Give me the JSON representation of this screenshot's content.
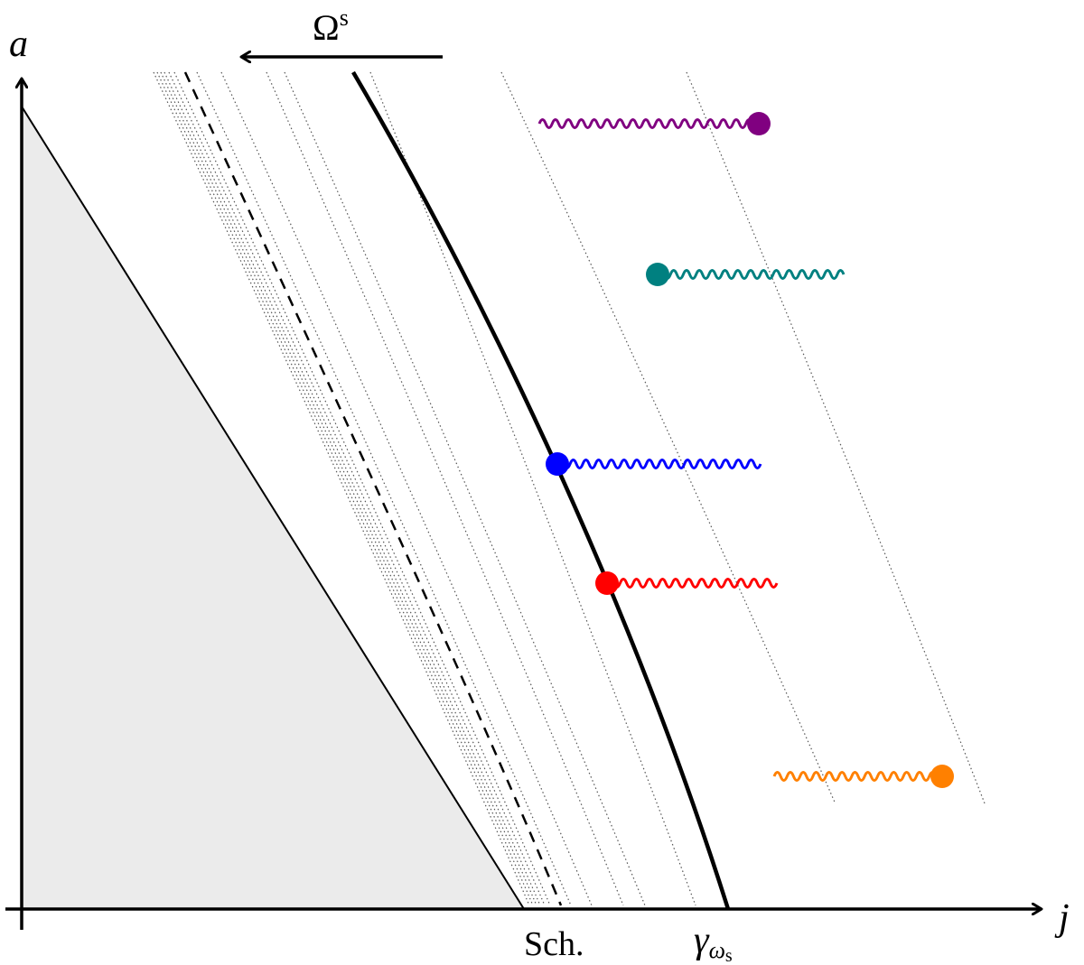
{
  "axes": {
    "y_label": "a",
    "x_label": "j"
  },
  "flow": {
    "label_main": "Ω",
    "label_sup": "s"
  },
  "ticks": {
    "sch_label": "Sch.",
    "gamma_symbol": "γ",
    "gamma_sub": "ω",
    "gamma_sub_sub": "s"
  },
  "regions": {
    "excluded_fill": "#ebebeb"
  },
  "curves": {
    "thick_curve_color": "#000000",
    "dashed_curve_color": "#000000",
    "dotted_curve_color": "#555555"
  },
  "markers": [
    {
      "name": "purple-marker",
      "color": "#800080",
      "dot_side": "right"
    },
    {
      "name": "teal-marker",
      "color": "#008080",
      "dot_side": "left"
    },
    {
      "name": "blue-marker",
      "color": "#0000ff",
      "dot_side": "left"
    },
    {
      "name": "red-marker",
      "color": "#ff0000",
      "dot_side": "left"
    },
    {
      "name": "orange-marker",
      "color": "#ff8000",
      "dot_side": "right"
    }
  ]
}
